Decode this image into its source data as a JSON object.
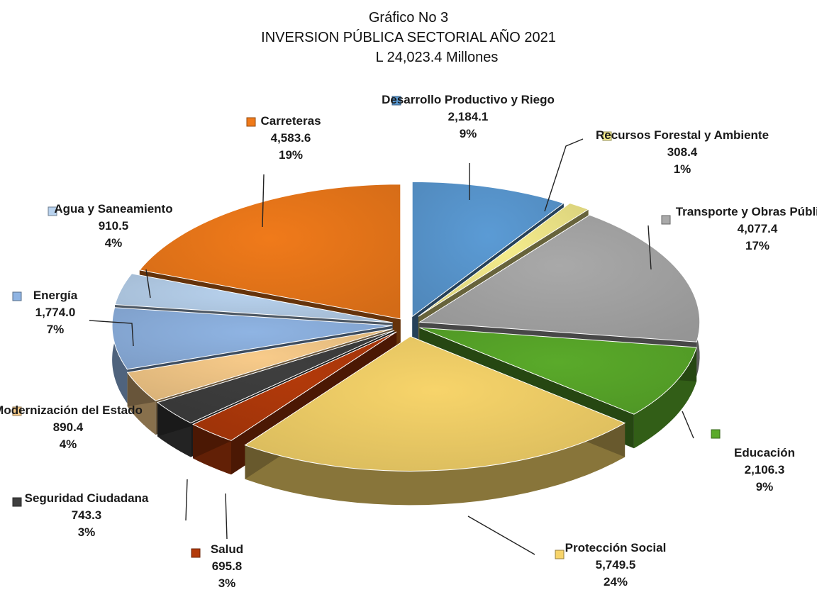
{
  "title_line1": "Gráfico No 3",
  "title_line2": "INVERSION PÚBLICA SECTORIAL AÑO 2021",
  "title_line3": "L 24,023.4 Millones",
  "chart_data": {
    "type": "pie",
    "title": "INVERSION PÚBLICA SECTORIAL AÑO 2021",
    "subtitle": "L 24,023.4 Millones",
    "unit": "Millones",
    "legend": "labels-outside",
    "slices": [
      {
        "name": "Desarrollo Productivo y Riego",
        "value": 2184.1,
        "percent": "9%",
        "value_label": "2,184.1",
        "color": "#5b9bd5"
      },
      {
        "name": "Recursos Forestal y Ambiente",
        "value": 308.4,
        "percent": "1%",
        "value_label": "308.4",
        "color": "#f5ec8c"
      },
      {
        "name": "Transporte y Obras Públicas",
        "value": 4077.4,
        "percent": "17%",
        "value_label": "4,077.4",
        "color": "#a9a9a9"
      },
      {
        "name": "Educación",
        "value": 2106.3,
        "percent": "9%",
        "value_label": "2,106.3",
        "color": "#5aaa2a"
      },
      {
        "name": "Protección Social",
        "value": 5749.5,
        "percent": "24%",
        "value_label": "5,749.5",
        "color": "#f7d46a"
      },
      {
        "name": "Salud",
        "value": 695.8,
        "percent": "3%",
        "value_label": "695.8",
        "color": "#b33a0a"
      },
      {
        "name": "Seguridad Ciudadana",
        "value": 743.3,
        "percent": "3%",
        "value_label": "743.3",
        "color": "#3f3f3f"
      },
      {
        "name": "Modernización del Estado",
        "value": 890.4,
        "percent": "4%",
        "value_label": "890.4",
        "color": "#f8cb8a"
      },
      {
        "name": "Energía",
        "value": 1774.0,
        "percent": "7%",
        "value_label": "1,774.0",
        "color": "#8fb4e3"
      },
      {
        "name": "Agua y Saneamiento",
        "value": 910.5,
        "percent": "4%",
        "value_label": "910.5",
        "color": "#b8d2ee"
      },
      {
        "name": "Carreteras",
        "value": 4583.6,
        "percent": "19%",
        "value_label": "4,583.6",
        "color": "#f07a1a"
      }
    ]
  }
}
